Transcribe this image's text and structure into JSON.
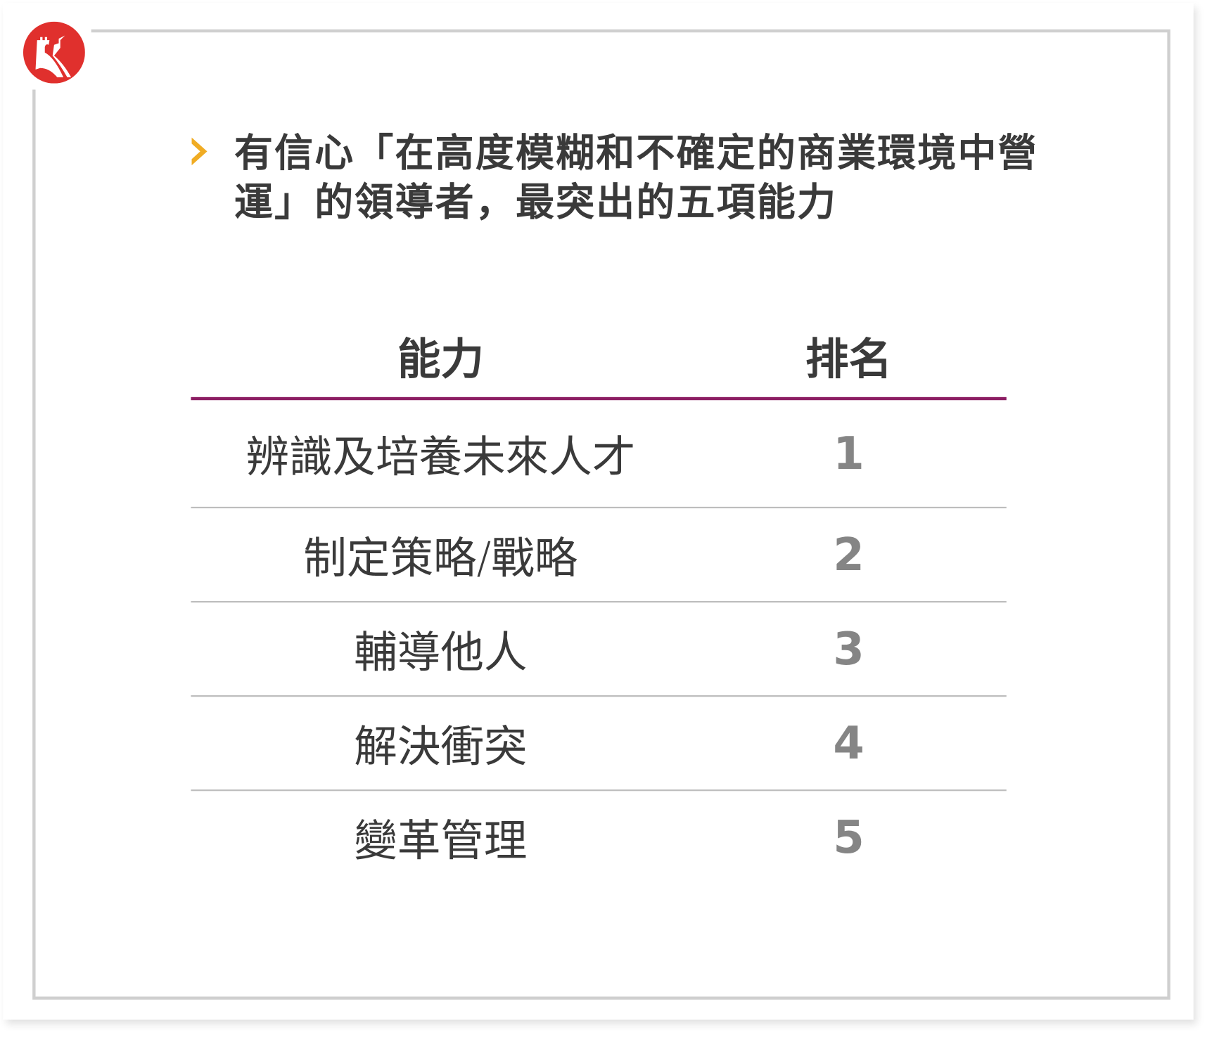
{
  "logo": {
    "icon": "great-wall-icon",
    "color": "#e0302d"
  },
  "title": "有信心「在高度模糊和不確定的商業環境中營運」的領導者，最突出的五項能力",
  "bullet": {
    "icon": "chevron-right-icon",
    "color": "#f0ac24"
  },
  "table": {
    "headers": [
      "能力",
      "排名"
    ],
    "accent": "#8c1d63",
    "rows": [
      {
        "ability": "辨識及培養未來人才",
        "rank": "1"
      },
      {
        "ability": "制定策略/戰略",
        "rank": "2"
      },
      {
        "ability": "輔導他人",
        "rank": "3"
      },
      {
        "ability": "解決衝突",
        "rank": "4"
      },
      {
        "ability": "變革管理",
        "rank": "5"
      }
    ]
  }
}
